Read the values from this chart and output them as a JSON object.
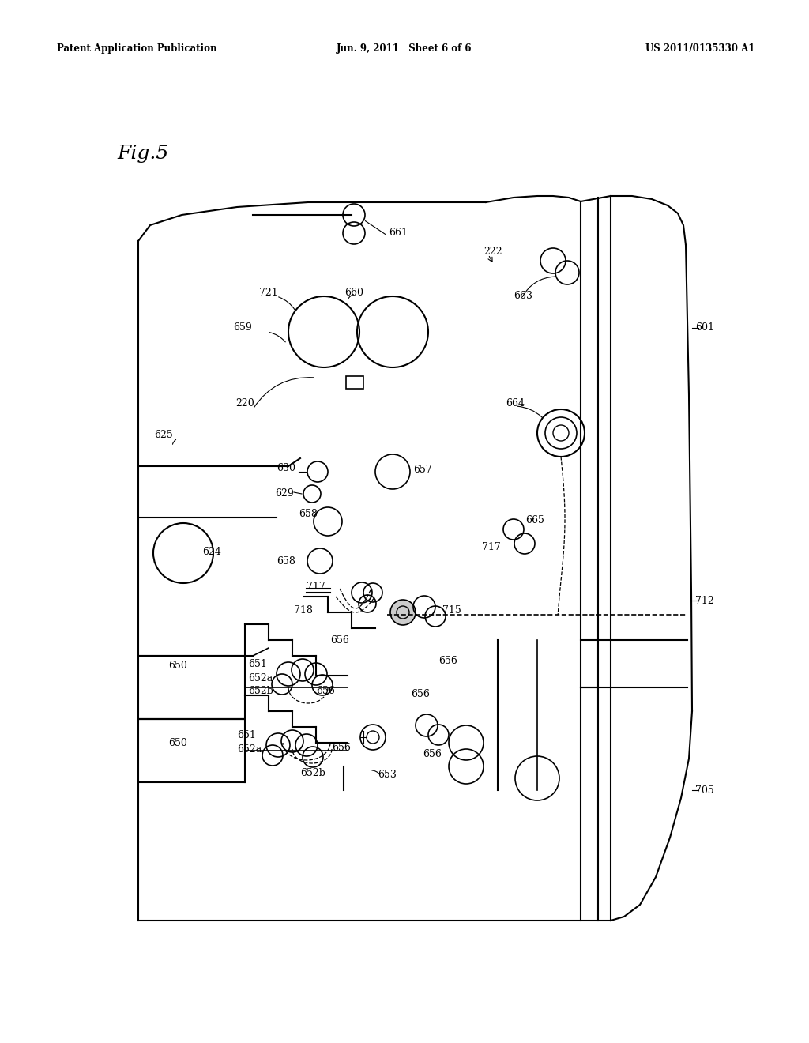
{
  "header_left": "Patent Application Publication",
  "header_center": "Jun. 9, 2011   Sheet 6 of 6",
  "header_right": "US 2011/0135330 A1",
  "bg_color": "#ffffff",
  "fig_label": "Fig.5"
}
